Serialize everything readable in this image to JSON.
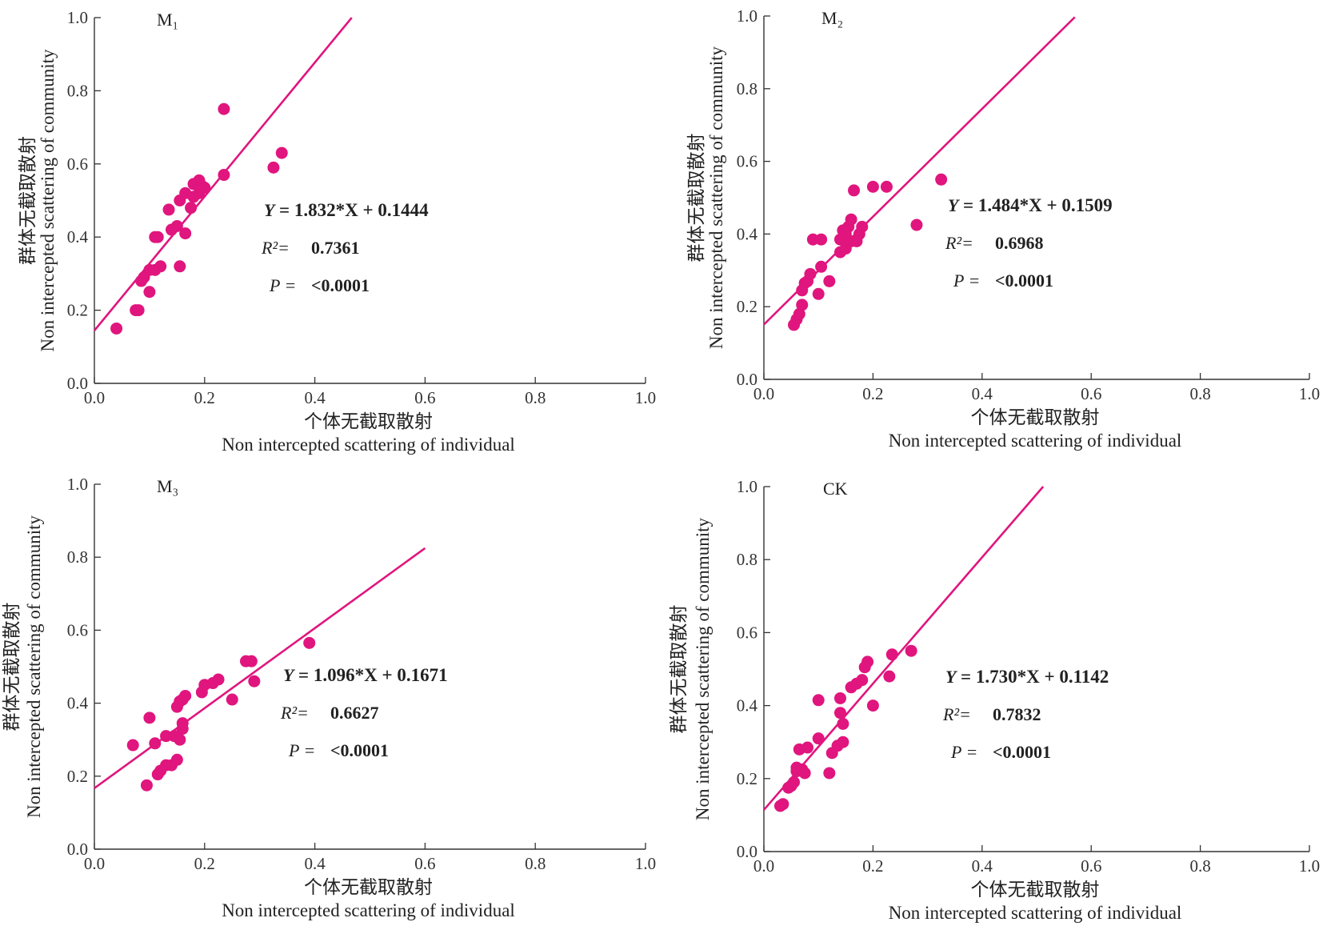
{
  "figure": {
    "accent_color": "#e0157e",
    "tick_labels": [
      "0.0",
      "0.2",
      "0.4",
      "0.6",
      "0.8",
      "1.0"
    ]
  },
  "chart_data": [
    {
      "id": "M1",
      "type": "scatter",
      "panel_label": "M₁",
      "xlabel_cn": "个体无截取散射",
      "xlabel_en": "Non intercepted scattering of individual",
      "ylabel_cn": "群体无截取散射",
      "ylabel_en": "Non intercepted scattering of community",
      "xlim": [
        0,
        1
      ],
      "ylim": [
        0,
        1
      ],
      "grid": false,
      "points": [
        [
          0.04,
          0.15
        ],
        [
          0.075,
          0.2
        ],
        [
          0.08,
          0.2
        ],
        [
          0.085,
          0.28
        ],
        [
          0.09,
          0.29
        ],
        [
          0.1,
          0.31
        ],
        [
          0.1,
          0.25
        ],
        [
          0.11,
          0.31
        ],
        [
          0.11,
          0.4
        ],
        [
          0.115,
          0.4
        ],
        [
          0.12,
          0.32
        ],
        [
          0.135,
          0.475
        ],
        [
          0.14,
          0.42
        ],
        [
          0.15,
          0.43
        ],
        [
          0.155,
          0.32
        ],
        [
          0.155,
          0.5
        ],
        [
          0.165,
          0.41
        ],
        [
          0.165,
          0.52
        ],
        [
          0.175,
          0.48
        ],
        [
          0.18,
          0.51
        ],
        [
          0.18,
          0.545
        ],
        [
          0.19,
          0.555
        ],
        [
          0.19,
          0.52
        ],
        [
          0.195,
          0.54
        ],
        [
          0.2,
          0.535
        ],
        [
          0.235,
          0.57
        ],
        [
          0.235,
          0.75
        ],
        [
          0.325,
          0.59
        ],
        [
          0.34,
          0.63
        ]
      ],
      "fit": {
        "slope": 1.832,
        "intercept": 0.1444,
        "x_range": [
          0,
          0.467
        ]
      },
      "equation": {
        "y_label": "Y",
        "rhs": "= 1.832*X + 0.1444"
      },
      "r2": {
        "key": "R²=",
        "value": "0.7361"
      },
      "p": {
        "key": "P =",
        "value": "<0.0001"
      }
    },
    {
      "id": "M2",
      "type": "scatter",
      "panel_label": "M₂",
      "xlabel_cn": "个体无截取散射",
      "xlabel_en": "Non intercepted scattering of individual",
      "ylabel_cn": "群体无截取散射",
      "ylabel_en": "Non intercepted scattering of community",
      "xlim": [
        0,
        1
      ],
      "ylim": [
        0,
        1
      ],
      "grid": false,
      "points": [
        [
          0.055,
          0.15
        ],
        [
          0.06,
          0.165
        ],
        [
          0.065,
          0.18
        ],
        [
          0.07,
          0.205
        ],
        [
          0.07,
          0.245
        ],
        [
          0.075,
          0.265
        ],
        [
          0.08,
          0.27
        ],
        [
          0.085,
          0.29
        ],
        [
          0.09,
          0.385
        ],
        [
          0.1,
          0.235
        ],
        [
          0.105,
          0.31
        ],
        [
          0.105,
          0.385
        ],
        [
          0.12,
          0.27
        ],
        [
          0.14,
          0.35
        ],
        [
          0.14,
          0.385
        ],
        [
          0.145,
          0.41
        ],
        [
          0.15,
          0.36
        ],
        [
          0.15,
          0.4
        ],
        [
          0.155,
          0.42
        ],
        [
          0.16,
          0.38
        ],
        [
          0.16,
          0.44
        ],
        [
          0.165,
          0.52
        ],
        [
          0.17,
          0.38
        ],
        [
          0.175,
          0.4
        ],
        [
          0.18,
          0.42
        ],
        [
          0.2,
          0.53
        ],
        [
          0.225,
          0.53
        ],
        [
          0.28,
          0.425
        ],
        [
          0.325,
          0.55
        ]
      ],
      "fit": {
        "slope": 1.484,
        "intercept": 0.1509,
        "x_range": [
          0,
          0.57
        ]
      },
      "equation": {
        "y_label": "Y",
        "rhs": "= 1.484*X + 0.1509"
      },
      "r2": {
        "key": "R²=",
        "value": "0.6968"
      },
      "p": {
        "key": "P =",
        "value": "<0.0001"
      }
    },
    {
      "id": "M3",
      "type": "scatter",
      "panel_label": "M₃",
      "xlabel_cn": "个体无截取散射",
      "xlabel_en": "Non intercepted scattering of individual",
      "ylabel_cn": "群体无截取散射",
      "ylabel_en": "Non intercepted scattering of community",
      "xlim": [
        0,
        1
      ],
      "ylim": [
        0,
        1
      ],
      "grid": false,
      "points": [
        [
          0.07,
          0.285
        ],
        [
          0.095,
          0.175
        ],
        [
          0.1,
          0.36
        ],
        [
          0.11,
          0.29
        ],
        [
          0.115,
          0.205
        ],
        [
          0.12,
          0.215
        ],
        [
          0.13,
          0.23
        ],
        [
          0.13,
          0.31
        ],
        [
          0.14,
          0.23
        ],
        [
          0.145,
          0.31
        ],
        [
          0.15,
          0.245
        ],
        [
          0.15,
          0.39
        ],
        [
          0.155,
          0.3
        ],
        [
          0.155,
          0.405
        ],
        [
          0.16,
          0.33
        ],
        [
          0.16,
          0.41
        ],
        [
          0.16,
          0.345
        ],
        [
          0.165,
          0.42
        ],
        [
          0.195,
          0.43
        ],
        [
          0.2,
          0.45
        ],
        [
          0.215,
          0.455
        ],
        [
          0.225,
          0.465
        ],
        [
          0.25,
          0.41
        ],
        [
          0.275,
          0.515
        ],
        [
          0.285,
          0.515
        ],
        [
          0.29,
          0.46
        ],
        [
          0.39,
          0.565
        ]
      ],
      "fit": {
        "slope": 1.096,
        "intercept": 0.1671,
        "x_range": [
          0,
          0.6
        ]
      },
      "equation": {
        "y_label": "Y",
        "rhs": "= 1.096*X + 0.1671"
      },
      "r2": {
        "key": "R²=",
        "value": "0.6627"
      },
      "p": {
        "key": "P =",
        "value": "<0.0001"
      }
    },
    {
      "id": "CK",
      "type": "scatter",
      "panel_label": "CK",
      "xlabel_cn": "个体无截取散射",
      "xlabel_en": "Non intercepted scattering of individual",
      "ylabel_cn": "群体无截取散射",
      "ylabel_en": "Non intercepted scattering of community",
      "xlim": [
        0,
        1
      ],
      "ylim": [
        0,
        1
      ],
      "grid": false,
      "points": [
        [
          0.03,
          0.125
        ],
        [
          0.035,
          0.13
        ],
        [
          0.045,
          0.175
        ],
        [
          0.05,
          0.18
        ],
        [
          0.055,
          0.19
        ],
        [
          0.06,
          0.22
        ],
        [
          0.06,
          0.23
        ],
        [
          0.065,
          0.28
        ],
        [
          0.07,
          0.225
        ],
        [
          0.075,
          0.215
        ],
        [
          0.08,
          0.285
        ],
        [
          0.1,
          0.31
        ],
        [
          0.1,
          0.415
        ],
        [
          0.12,
          0.215
        ],
        [
          0.125,
          0.27
        ],
        [
          0.135,
          0.29
        ],
        [
          0.14,
          0.42
        ],
        [
          0.14,
          0.38
        ],
        [
          0.145,
          0.3
        ],
        [
          0.145,
          0.35
        ],
        [
          0.16,
          0.45
        ],
        [
          0.17,
          0.46
        ],
        [
          0.18,
          0.47
        ],
        [
          0.185,
          0.505
        ],
        [
          0.19,
          0.52
        ],
        [
          0.2,
          0.4
        ],
        [
          0.23,
          0.48
        ],
        [
          0.235,
          0.54
        ],
        [
          0.27,
          0.55
        ]
      ],
      "fit": {
        "slope": 1.73,
        "intercept": 0.1142,
        "x_range": [
          0,
          0.512
        ]
      },
      "equation": {
        "y_label": "Y",
        "rhs": "= 1.730*X + 0.1142"
      },
      "r2": {
        "key": "R²=",
        "value": "0.7832"
      },
      "p": {
        "key": "P =",
        "value": "<0.0001"
      }
    }
  ]
}
